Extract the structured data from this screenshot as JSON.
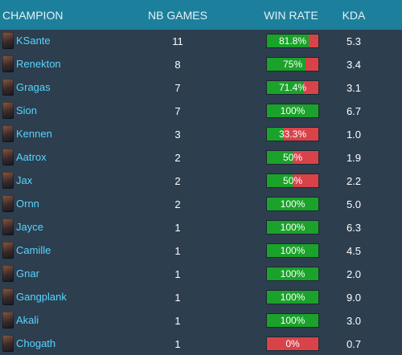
{
  "header": {
    "champion": "CHAMPION",
    "games": "NB GAMES",
    "winrate": "WIN RATE",
    "kda": "KDA"
  },
  "colors": {
    "win": "#1aa22a",
    "loss": "#d8434a",
    "name": "#56d6ff",
    "header_bg": "#1c7f9c"
  },
  "rows": [
    {
      "champion": "KSante",
      "games": "11",
      "winrate_label": "81.8%",
      "winrate": 0.818,
      "kda": "5.3"
    },
    {
      "champion": "Renekton",
      "games": "8",
      "winrate_label": "75%",
      "winrate": 0.75,
      "kda": "3.4"
    },
    {
      "champion": "Gragas",
      "games": "7",
      "winrate_label": "71.4%",
      "winrate": 0.714,
      "kda": "3.1"
    },
    {
      "champion": "Sion",
      "games": "7",
      "winrate_label": "100%",
      "winrate": 1.0,
      "kda": "6.7"
    },
    {
      "champion": "Kennen",
      "games": "3",
      "winrate_label": "33.3%",
      "winrate": 0.333,
      "kda": "1.0"
    },
    {
      "champion": "Aatrox",
      "games": "2",
      "winrate_label": "50%",
      "winrate": 0.5,
      "kda": "1.9"
    },
    {
      "champion": "Jax",
      "games": "2",
      "winrate_label": "50%",
      "winrate": 0.5,
      "kda": "2.2"
    },
    {
      "champion": "Ornn",
      "games": "2",
      "winrate_label": "100%",
      "winrate": 1.0,
      "kda": "5.0"
    },
    {
      "champion": "Jayce",
      "games": "1",
      "winrate_label": "100%",
      "winrate": 1.0,
      "kda": "6.3"
    },
    {
      "champion": "Camille",
      "games": "1",
      "winrate_label": "100%",
      "winrate": 1.0,
      "kda": "4.5"
    },
    {
      "champion": "Gnar",
      "games": "1",
      "winrate_label": "100%",
      "winrate": 1.0,
      "kda": "2.0"
    },
    {
      "champion": "Gangplank",
      "games": "1",
      "winrate_label": "100%",
      "winrate": 1.0,
      "kda": "9.0"
    },
    {
      "champion": "Akali",
      "games": "1",
      "winrate_label": "100%",
      "winrate": 1.0,
      "kda": "3.0"
    },
    {
      "champion": "Chogath",
      "games": "1",
      "winrate_label": "0%",
      "winrate": 0.0,
      "kda": "0.7"
    }
  ]
}
